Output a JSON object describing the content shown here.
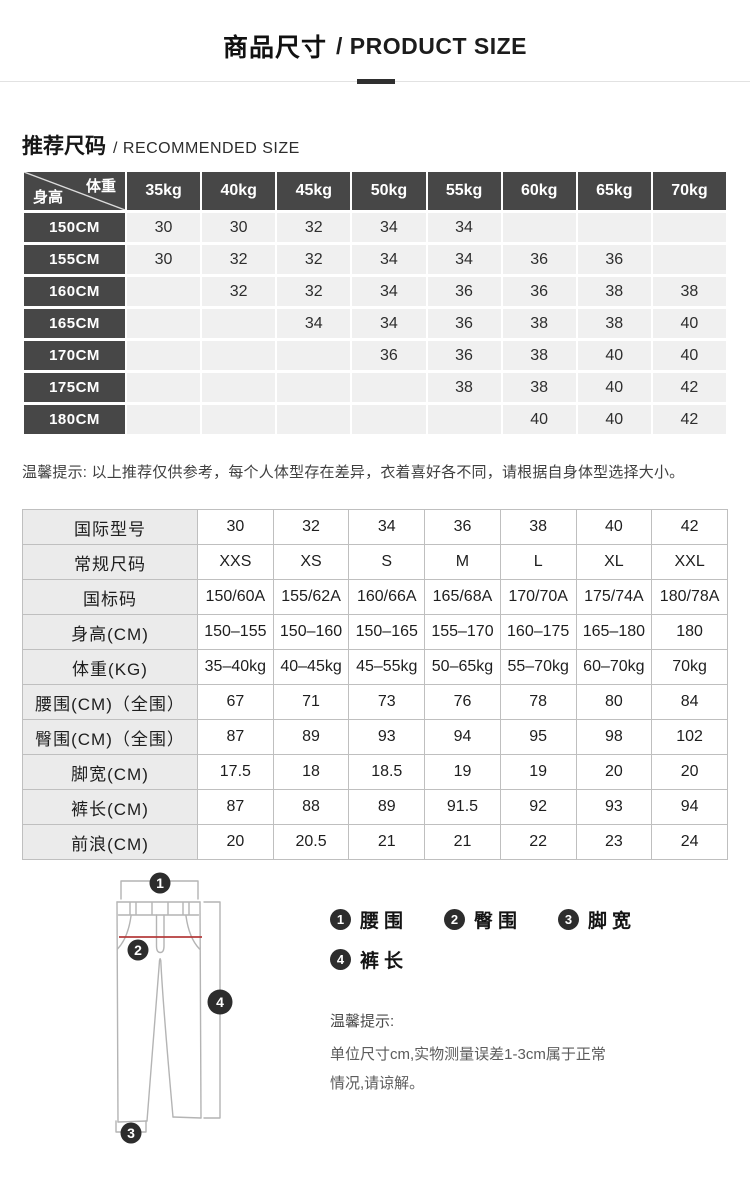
{
  "header": {
    "title_zh": "商品尺寸",
    "title_en": "/ PRODUCT SIZE"
  },
  "recommended": {
    "heading_zh": "推荐尺码",
    "heading_en": "/ RECOMMENDED SIZE",
    "corner_top": "体重",
    "corner_bottom": "身高",
    "columns": [
      "35kg",
      "40kg",
      "45kg",
      "50kg",
      "55kg",
      "60kg",
      "65kg",
      "70kg"
    ],
    "rows": [
      {
        "label": "150CM",
        "values": [
          "30",
          "30",
          "32",
          "34",
          "34",
          "",
          "",
          ""
        ]
      },
      {
        "label": "155CM",
        "values": [
          "30",
          "32",
          "32",
          "34",
          "34",
          "36",
          "36",
          ""
        ]
      },
      {
        "label": "160CM",
        "values": [
          "",
          "32",
          "32",
          "34",
          "36",
          "36",
          "38",
          "38"
        ]
      },
      {
        "label": "165CM",
        "values": [
          "",
          "",
          "34",
          "34",
          "36",
          "38",
          "38",
          "40"
        ]
      },
      {
        "label": "170CM",
        "values": [
          "",
          "",
          "",
          "36",
          "36",
          "38",
          "40",
          "40"
        ]
      },
      {
        "label": "175CM",
        "values": [
          "",
          "",
          "",
          "",
          "38",
          "38",
          "40",
          "42"
        ]
      },
      {
        "label": "180CM",
        "values": [
          "",
          "",
          "",
          "",
          "",
          "40",
          "40",
          "42"
        ]
      }
    ],
    "note": "温馨提示: 以上推荐仅供参考，每个人体型存在差异，衣着喜好各不同，请根据自身体型选择大小。"
  },
  "size_table": {
    "rows": [
      {
        "label": "国际型号",
        "values": [
          "30",
          "32",
          "34",
          "36",
          "38",
          "40",
          "42"
        ]
      },
      {
        "label": "常规尺码",
        "values": [
          "XXS",
          "XS",
          "S",
          "M",
          "L",
          "XL",
          "XXL"
        ]
      },
      {
        "label": "国标码",
        "values": [
          "150/60A",
          "155/62A",
          "160/66A",
          "165/68A",
          "170/70A",
          "175/74A",
          "180/78A"
        ]
      },
      {
        "label": "身高(CM)",
        "values": [
          "150–155",
          "150–160",
          "150–165",
          "155–170",
          "160–175",
          "165–180",
          "180"
        ]
      },
      {
        "label": "体重(KG)",
        "values": [
          "35–40kg",
          "40–45kg",
          "45–55kg",
          "50–65kg",
          "55–70kg",
          "60–70kg",
          "70kg"
        ]
      },
      {
        "label": "腰围(CM)（全围）",
        "values": [
          "67",
          "71",
          "73",
          "76",
          "78",
          "80",
          "84"
        ]
      },
      {
        "label": "臀围(CM)（全围）",
        "values": [
          "87",
          "89",
          "93",
          "94",
          "95",
          "98",
          "102"
        ]
      },
      {
        "label": "脚宽(CM)",
        "values": [
          "17.5",
          "18",
          "18.5",
          "19",
          "19",
          "20",
          "20"
        ]
      },
      {
        "label": "裤长(CM)",
        "values": [
          "87",
          "88",
          "89",
          "91.5",
          "92",
          "93",
          "94"
        ]
      },
      {
        "label": "前浪(CM)",
        "values": [
          "20",
          "20.5",
          "21",
          "21",
          "22",
          "23",
          "24"
        ]
      }
    ]
  },
  "measure": {
    "legend": [
      {
        "num": "1",
        "label": "腰围"
      },
      {
        "num": "2",
        "label": "臀围"
      },
      {
        "num": "3",
        "label": "脚宽"
      },
      {
        "num": "4",
        "label": "裤长"
      }
    ],
    "note_title": "温馨提示:",
    "note_line1": "单位尺寸cm,实物测量误差1-3cm属于正常",
    "note_line2": "情况,请谅解。"
  },
  "colors": {
    "table_header_dark": "#474747",
    "table_cell_light": "#f0f0f0",
    "spec_border": "#bfbfbf",
    "spec_label_bg": "#ebebeb",
    "hip_line_red": "#b43b3b",
    "badge_dark": "#2d2d2d",
    "divider_accent": "#2f2f2f"
  }
}
